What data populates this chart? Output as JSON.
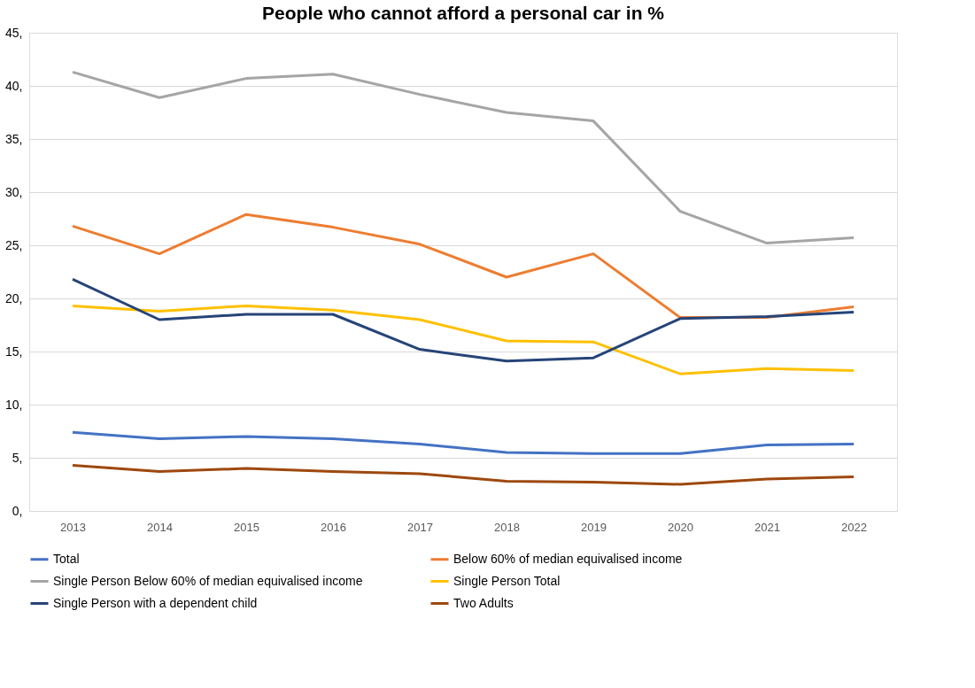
{
  "chart_data": {
    "type": "line",
    "title": "People who cannot afford a personal car in %",
    "categories": [
      "2013",
      "2014",
      "2015",
      "2016",
      "2017",
      "2018",
      "2019",
      "2020",
      "2021",
      "2022"
    ],
    "series": [
      {
        "name": "Total",
        "color": "#4472c4",
        "values": [
          7.4,
          6.8,
          7.0,
          6.8,
          6.3,
          5.5,
          5.4,
          5.4,
          6.2,
          6.3
        ]
      },
      {
        "name": "Below 60% of median equivalised income",
        "color": "#ed7d31",
        "values": [
          26.8,
          24.2,
          27.9,
          26.7,
          25.1,
          22.0,
          24.2,
          18.2,
          18.2,
          19.2
        ]
      },
      {
        "name": "Single Person Below 60% of median equivalised income",
        "color": "#a5a5a5",
        "values": [
          41.3,
          38.9,
          40.7,
          41.1,
          39.2,
          37.5,
          36.7,
          28.2,
          25.2,
          25.7
        ]
      },
      {
        "name": "Single Person Total",
        "color": "#ffc000",
        "values": [
          19.3,
          18.8,
          19.3,
          18.9,
          18.0,
          16.0,
          15.9,
          12.9,
          13.4,
          13.2
        ]
      },
      {
        "name": "Single Person with a dependent child",
        "color": "#264478",
        "values": [
          21.8,
          18.0,
          18.5,
          18.5,
          15.2,
          14.1,
          14.4,
          18.1,
          18.3,
          18.7
        ]
      },
      {
        "name": "Two Adults",
        "color": "#9e480e",
        "values": [
          4.3,
          3.7,
          4.0,
          3.7,
          3.5,
          2.8,
          2.7,
          2.5,
          3.0,
          3.2
        ]
      }
    ],
    "ylim": [
      0,
      45
    ],
    "yticks": [
      {
        "value": 0,
        "label": "0,"
      },
      {
        "value": 5,
        "label": "5,"
      },
      {
        "value": 10,
        "label": "10,"
      },
      {
        "value": 15,
        "label": "15,"
      },
      {
        "value": 20,
        "label": "20,"
      },
      {
        "value": 25,
        "label": "25,"
      },
      {
        "value": 30,
        "label": "30,"
      },
      {
        "value": 35,
        "label": "35,"
      },
      {
        "value": 40,
        "label": "40,"
      },
      {
        "value": 45,
        "label": "45,"
      }
    ],
    "grid": "y",
    "legend": "bottom",
    "marker": "none",
    "line_style": "solid"
  }
}
